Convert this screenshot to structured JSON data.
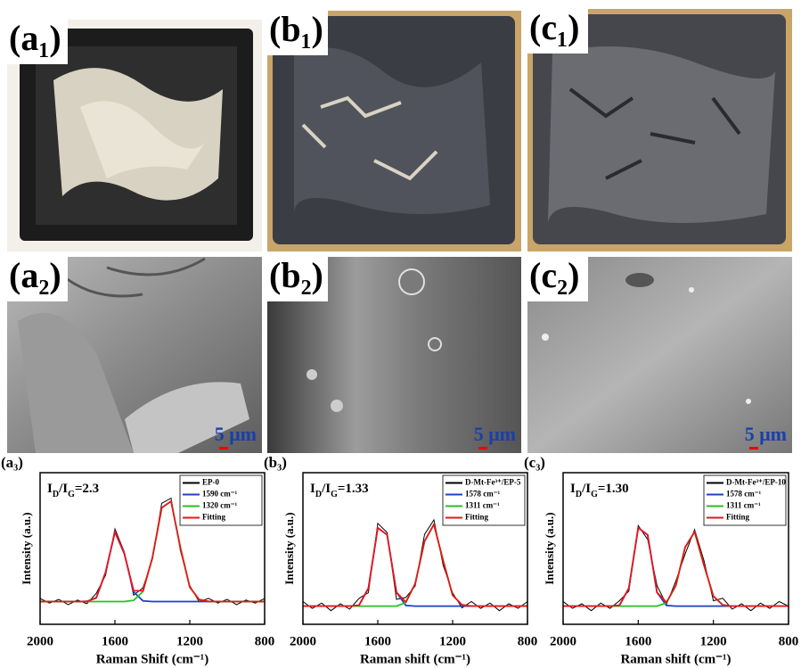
{
  "images": [
    {
      "label": "(a₁)"
    },
    {
      "label": "(b₁)"
    },
    {
      "label": "(c₁)"
    },
    {
      "label": "(a₂)",
      "scale_bar": "5 μm"
    },
    {
      "label": "(b₂)",
      "scale_bar": "5 μm"
    },
    {
      "label": "(c₂)",
      "scale_bar": "5 μm"
    }
  ],
  "chart_data": [
    {
      "type": "line",
      "panel_label": "(a₃)",
      "annotation": [
        {
          "text": "I"
        },
        {
          "text": "D",
          "sub": true
        },
        {
          "text": "/I"
        },
        {
          "text": "G",
          "sub": true
        },
        {
          "text": "=2.3"
        }
      ],
      "xlabel": "Raman Shift (cm⁻¹)",
      "ylabel": "Intensity (a.u.)",
      "xlim": [
        2000,
        800
      ],
      "xticks": [
        2000,
        1600,
        1200,
        800
      ],
      "ylim": [
        0,
        1
      ],
      "legend": "upper right",
      "x": [
        2000,
        1950,
        1900,
        1850,
        1800,
        1750,
        1700,
        1650,
        1600,
        1550,
        1500,
        1450,
        1400,
        1350,
        1300,
        1250,
        1200,
        1150,
        1100,
        1050,
        1000,
        950,
        900,
        850,
        800
      ],
      "series": [
        {
          "name": "EP-0",
          "color": "#000000",
          "values": [
            0.17,
            0.14,
            0.165,
            0.13,
            0.16,
            0.136,
            0.204,
            0.323,
            0.629,
            0.477,
            0.192,
            0.241,
            0.428,
            0.798,
            0.832,
            0.484,
            0.255,
            0.148,
            0.171,
            0.14,
            0.165,
            0.13,
            0.16,
            0.14,
            0.17
          ]
        },
        {
          "name": "1590 cm⁻¹",
          "color": "#1f3fc8",
          "values": [
            0.15,
            0.15,
            0.15,
            0.15,
            0.15,
            0.151,
            0.174,
            0.343,
            0.609,
            0.467,
            0.214,
            0.154,
            0.15,
            0.15,
            0.15,
            0.15,
            0.15,
            0.15,
            0.15,
            0.15,
            0.15,
            0.15,
            0.15,
            0.15,
            0.15
          ]
        },
        {
          "name": "1320 cm⁻¹",
          "color": "#22c322",
          "values": [
            0.15,
            0.15,
            0.15,
            0.15,
            0.15,
            0.15,
            0.15,
            0.15,
            0.15,
            0.15,
            0.158,
            0.217,
            0.438,
            0.768,
            0.812,
            0.504,
            0.245,
            0.163,
            0.151,
            0.15,
            0.15,
            0.15,
            0.15,
            0.15,
            0.15
          ]
        },
        {
          "name": "Fitting",
          "color": "#e8161b",
          "values": [
            0.15,
            0.15,
            0.15,
            0.15,
            0.15,
            0.151,
            0.174,
            0.343,
            0.609,
            0.467,
            0.222,
            0.221,
            0.438,
            0.768,
            0.812,
            0.504,
            0.245,
            0.163,
            0.151,
            0.15,
            0.15,
            0.15,
            0.15,
            0.15,
            0.15
          ]
        }
      ]
    },
    {
      "type": "line",
      "panel_label": "(b₃)",
      "annotation": [
        {
          "text": "I"
        },
        {
          "text": "D",
          "sub": true
        },
        {
          "text": "/I"
        },
        {
          "text": "G",
          "sub": true
        },
        {
          "text": "=1.33"
        }
      ],
      "xlabel": "Raman shift (cm⁻¹)",
      "ylabel": "Intensity (a.u.)",
      "xlim": [
        2000,
        800
      ],
      "xticks": [
        2000,
        1600,
        1200,
        800
      ],
      "ylim": [
        0,
        1
      ],
      "legend": "upper right",
      "x": [
        2000,
        1950,
        1900,
        1850,
        1800,
        1750,
        1700,
        1650,
        1600,
        1550,
        1500,
        1450,
        1400,
        1350,
        1300,
        1250,
        1200,
        1150,
        1100,
        1050,
        1000,
        950,
        900,
        850,
        800
      ],
      "series": [
        {
          "name": "D-Mt-Fe³⁺/EP-5",
          "color": "#000000",
          "values": [
            0.15,
            0.105,
            0.14,
            0.09,
            0.135,
            0.1,
            0.171,
            0.209,
            0.666,
            0.605,
            0.165,
            0.177,
            0.253,
            0.593,
            0.689,
            0.387,
            0.207,
            0.108,
            0.15,
            0.105,
            0.14,
            0.09,
            0.135,
            0.105,
            0.15
          ]
        },
        {
          "name": "1578 cm⁻¹",
          "color": "#1f3fc8",
          "values": [
            0.12,
            0.12,
            0.12,
            0.12,
            0.12,
            0.12,
            0.126,
            0.239,
            0.636,
            0.59,
            0.21,
            0.124,
            0.12,
            0.12,
            0.12,
            0.12,
            0.12,
            0.12,
            0.12,
            0.12,
            0.12,
            0.12,
            0.12,
            0.12,
            0.12
          ]
        },
        {
          "name": "1311 cm⁻¹",
          "color": "#22c322",
          "values": [
            0.12,
            0.12,
            0.12,
            0.12,
            0.12,
            0.12,
            0.12,
            0.12,
            0.12,
            0.12,
            0.12,
            0.143,
            0.268,
            0.548,
            0.659,
            0.417,
            0.192,
            0.128,
            0.12,
            0.12,
            0.12,
            0.12,
            0.12,
            0.12,
            0.12
          ]
        },
        {
          "name": "Fitting",
          "color": "#e8161b",
          "values": [
            0.12,
            0.12,
            0.12,
            0.12,
            0.12,
            0.12,
            0.126,
            0.239,
            0.636,
            0.59,
            0.21,
            0.147,
            0.268,
            0.548,
            0.659,
            0.417,
            0.192,
            0.128,
            0.12,
            0.12,
            0.12,
            0.12,
            0.12,
            0.12,
            0.12
          ]
        }
      ]
    },
    {
      "type": "line",
      "panel_label": "(c₃)",
      "annotation": [
        {
          "text": "I"
        },
        {
          "text": "D",
          "sub": true
        },
        {
          "text": "/I"
        },
        {
          "text": "G",
          "sub": true
        },
        {
          "text": "=1.30"
        }
      ],
      "xlabel": "Raman shift (cm⁻¹)",
      "ylabel": "Intensity (a.u.)",
      "xlim": [
        2000,
        800
      ],
      "xticks": [
        2000,
        1600,
        1200,
        800
      ],
      "ylim": [
        0,
        1
      ],
      "legend": "upper right",
      "x": [
        2000,
        1950,
        1900,
        1850,
        1800,
        1750,
        1700,
        1650,
        1600,
        1550,
        1500,
        1450,
        1400,
        1350,
        1300,
        1250,
        1200,
        1150,
        1100,
        1050,
        1000,
        950,
        900,
        850,
        800
      ],
      "series": [
        {
          "name": "D-Mt-Fe³⁺/EP-10",
          "color": "#000000",
          "values": [
            0.15,
            0.105,
            0.135,
            0.09,
            0.14,
            0.105,
            0.156,
            0.219,
            0.651,
            0.56,
            0.255,
            0.13,
            0.285,
            0.464,
            0.625,
            0.42,
            0.155,
            0.172,
            0.1,
            0.135,
            0.09,
            0.14,
            0.105,
            0.15,
            0.12
          ]
        },
        {
          "name": "1578 cm⁻¹",
          "color": "#1f3fc8",
          "values": [
            0.12,
            0.12,
            0.12,
            0.12,
            0.12,
            0.12,
            0.126,
            0.239,
            0.636,
            0.59,
            0.21,
            0.124,
            0.12,
            0.12,
            0.12,
            0.12,
            0.12,
            0.12,
            0.12,
            0.12,
            0.12,
            0.12,
            0.12,
            0.12,
            0.12
          ]
        },
        {
          "name": "1311 cm⁻¹",
          "color": "#22c322",
          "values": [
            0.12,
            0.12,
            0.12,
            0.12,
            0.12,
            0.12,
            0.12,
            0.12,
            0.12,
            0.12,
            0.12,
            0.141,
            0.255,
            0.509,
            0.61,
            0.39,
            0.185,
            0.127,
            0.12,
            0.12,
            0.12,
            0.12,
            0.12,
            0.12,
            0.12
          ]
        },
        {
          "name": "Fitting",
          "color": "#e8161b",
          "values": [
            0.12,
            0.12,
            0.12,
            0.12,
            0.12,
            0.12,
            0.126,
            0.239,
            0.636,
            0.59,
            0.21,
            0.145,
            0.255,
            0.509,
            0.61,
            0.39,
            0.185,
            0.127,
            0.12,
            0.12,
            0.12,
            0.12,
            0.12,
            0.12,
            0.12
          ]
        }
      ]
    }
  ]
}
